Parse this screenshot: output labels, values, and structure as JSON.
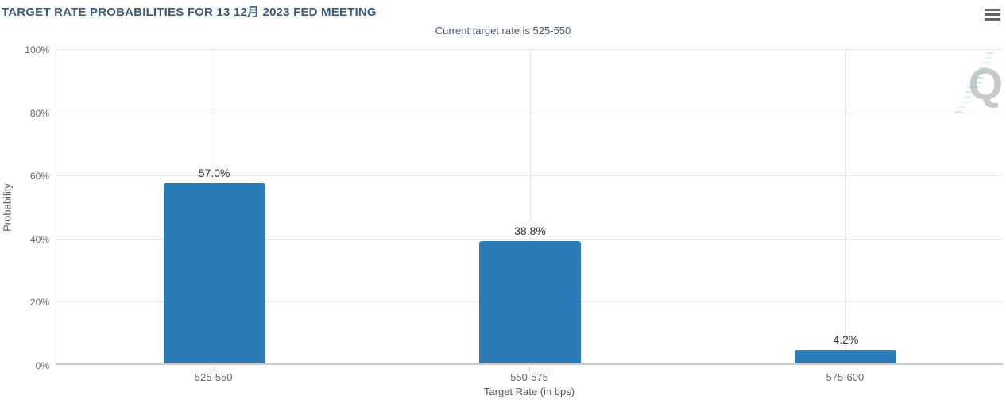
{
  "header": {
    "title": "TARGET RATE PROBABILITIES FOR 13 12月 2023 FED MEETING",
    "subtitle": "Current target rate is 525-550",
    "menu_icon": "hamburger-menu-icon"
  },
  "watermark": {
    "letter": "Q"
  },
  "colors": {
    "bar": "#2d7cb7",
    "title": "#3a5a7a",
    "gridline": "#e6e6e6",
    "axis_line": "#c9c9c9",
    "watermark_dash": "#5fcdd2"
  },
  "chart_data": {
    "type": "bar",
    "title": "TARGET RATE PROBABILITIES FOR 13 12月 2023 FED MEETING",
    "subtitle": "Current target rate is 525-550",
    "categories": [
      "525-550",
      "550-575",
      "575-600"
    ],
    "values": [
      57.0,
      38.8,
      4.2
    ],
    "value_labels": [
      "57.0%",
      "38.8%",
      "4.2%"
    ],
    "xlabel": "Target Rate (in bps)",
    "ylabel": "Probability",
    "ylim": [
      0,
      100
    ],
    "yticks": [
      0,
      20,
      40,
      60,
      80,
      100
    ],
    "ytick_labels": [
      "0%",
      "20%",
      "40%",
      "60%",
      "80%",
      "100%"
    ],
    "grid": true,
    "legend": "none",
    "bar_color": "#2d7cb7"
  }
}
